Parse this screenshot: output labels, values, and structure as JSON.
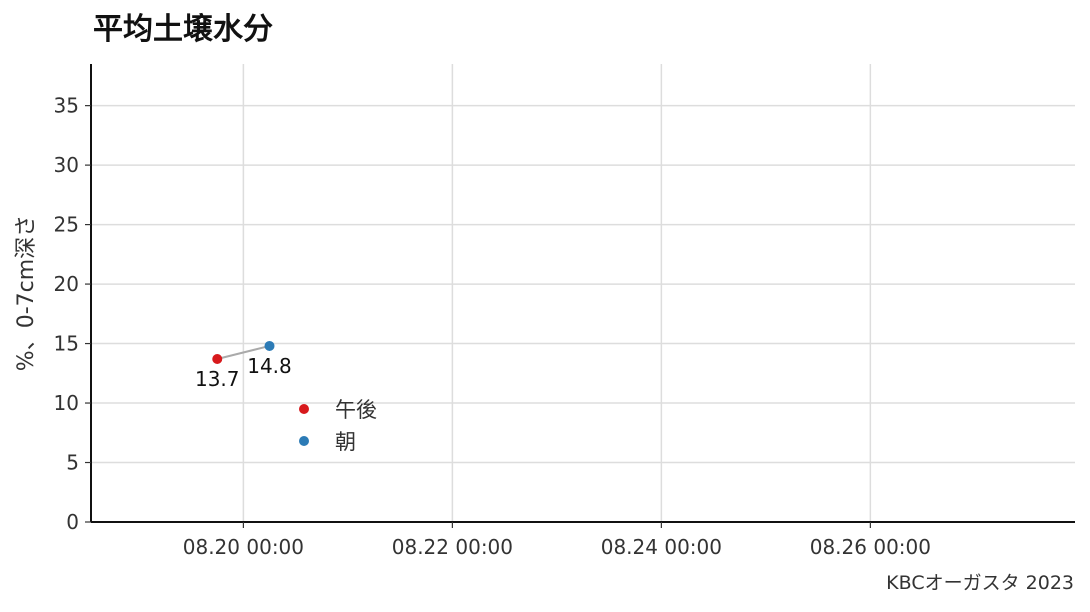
{
  "chart_data": {
    "type": "scatter",
    "title": "平均土壌水分",
    "ylabel": "%、0-7cm深さ",
    "xlabel": "",
    "caption": "KBCオーガスタ 2023",
    "x_ticks": [
      "08.20 00:00",
      "08.22 00:00",
      "08.24 00:00",
      "08.26 00:00"
    ],
    "x_range": [
      "2023-08-18 13:00",
      "2023-08-27 23:00"
    ],
    "y_ticks": [
      0,
      5,
      10,
      15,
      20,
      25,
      30,
      35
    ],
    "ylim": [
      0,
      38.5
    ],
    "grid": true,
    "legend_position": "inside-left",
    "series": [
      {
        "name": "午後",
        "color": "#d7191c",
        "points": [
          {
            "x": "2023-08-19 18:00",
            "y": 13.7,
            "label": "13.7"
          }
        ]
      },
      {
        "name": "朝",
        "color": "#2c7bb6",
        "points": [
          {
            "x": "2023-08-20 06:00",
            "y": 14.8,
            "label": "14.8"
          }
        ]
      }
    ],
    "connector_color": "#aaaaaa"
  }
}
